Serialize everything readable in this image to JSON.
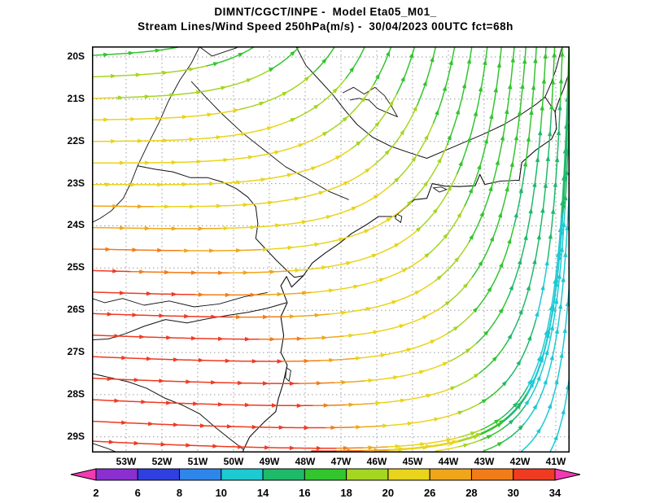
{
  "header": {
    "line1": "DIMNT/CGCT/INPE -  Model Eta05_M01_",
    "line2": "Stream Lines/Wind Speed 250hPa(m/s) -  30/04/2023 00UTC fct=68h"
  },
  "axes": {
    "lat_labels": [
      "20S",
      "21S",
      "22S",
      "23S",
      "24S",
      "25S",
      "26S",
      "27S",
      "28S",
      "29S"
    ],
    "lon_labels": [
      "53W",
      "52W",
      "51W",
      "50W",
      "49W",
      "48W",
      "47W",
      "46W",
      "45W",
      "44W",
      "43W",
      "42W",
      "41W"
    ]
  },
  "colorbar": {
    "tick_labels": [
      "2",
      "6",
      "8",
      "10",
      "14",
      "16",
      "18",
      "20",
      "26",
      "28",
      "30",
      "34"
    ],
    "segment_colors": [
      "#8a2fd0",
      "#2f3fe0",
      "#2f86ea",
      "#1ec9d2",
      "#1fb96a",
      "#33c52e",
      "#a5d622",
      "#e9d41c",
      "#f0a61a",
      "#f27c17",
      "#ef3b22"
    ],
    "arrow_color": "#f43ab2"
  },
  "chart_data": {
    "type": "streamline-map",
    "institution": "DIMNT/CGCT/INPE",
    "model": "Eta05_M01_",
    "field": "Stream Lines/Wind Speed",
    "level": "250hPa",
    "units": "m/s",
    "valid_time": "30/04/2023 00UTC",
    "forecast": "fct=68h",
    "lat_range_s": [
      19.75,
      29.37
    ],
    "lon_range_w": [
      53.955,
      40.614
    ],
    "speed_scale": {
      "unit": "m/s",
      "ticks": [
        2,
        6,
        8,
        10,
        14,
        16,
        18,
        20,
        26,
        28,
        30,
        34
      ]
    },
    "flow_summary": "Westerly jet of 30-34 m/s across the south (27S-29S, red) weakening eastward and northward; flow turns sharply northward along the east edge where speeds fall to 8-14 m/s (cyan/blue); 16-20 m/s (green) across the north.",
    "flow_model": {
      "note": "parametric approximation of the wind field used only to redraw the streamlines",
      "speed": {
        "base": 17,
        "south_gain": 24,
        "east_decay": 32,
        "east_pow": 1.6,
        "max": 33.9
      },
      "direction": {
        "ax": 0.95,
        "bx0": 0.35,
        "bx1": 0.65,
        "x_floor": 0.03,
        "py_base": 2,
        "py_gain": 2.5,
        "ay0": 1.8,
        "ay1": 1.45,
        "dip": 0.08,
        "dip_center": 0.3
      }
    },
    "seeds": {
      "left_edge_v": [
        0.022,
        0.075,
        0.128,
        0.181,
        0.234,
        0.287,
        0.34,
        0.393,
        0.446,
        0.499,
        0.552,
        0.605,
        0.658,
        0.711,
        0.764,
        0.817,
        0.87,
        0.923,
        0.972
      ],
      "bottom_edge_u": [
        0.46,
        0.6,
        0.72,
        0.82,
        0.9,
        0.96
      ]
    },
    "map_outlines": {
      "coast": [
        [
          40.62,
          20.35
        ],
        [
          40.78,
          20.75
        ],
        [
          40.92,
          21.05
        ],
        [
          41.02,
          21.3
        ],
        [
          40.98,
          21.7
        ],
        [
          41.12,
          21.95
        ],
        [
          41.55,
          22.2
        ],
        [
          41.95,
          22.5
        ],
        [
          42.02,
          22.92
        ],
        [
          42.55,
          22.94
        ],
        [
          42.98,
          23.02
        ],
        [
          43.12,
          22.78
        ],
        [
          43.25,
          23.05
        ],
        [
          43.7,
          23.07
        ],
        [
          44.1,
          23.06
        ],
        [
          44.45,
          23.0
        ],
        [
          44.6,
          23.35
        ],
        [
          44.95,
          23.38
        ],
        [
          45.25,
          23.6
        ],
        [
          45.5,
          23.78
        ],
        [
          45.95,
          23.78
        ],
        [
          46.3,
          23.98
        ],
        [
          46.7,
          24.18
        ],
        [
          47.05,
          24.42
        ],
        [
          47.45,
          24.65
        ],
        [
          47.8,
          24.88
        ],
        [
          48.05,
          25.18
        ],
        [
          48.38,
          25.45
        ],
        [
          48.52,
          25.2
        ],
        [
          48.68,
          25.42
        ],
        [
          48.5,
          25.82
        ],
        [
          48.68,
          26.15
        ],
        [
          48.6,
          26.6
        ],
        [
          48.68,
          27.0
        ],
        [
          48.5,
          27.3
        ],
        [
          48.62,
          27.75
        ],
        [
          48.75,
          28.1
        ],
        [
          48.82,
          28.4
        ],
        [
          49.15,
          28.65
        ],
        [
          49.55,
          29.0
        ],
        [
          49.72,
          29.3
        ],
        [
          49.82,
          29.6
        ]
      ],
      "borders": [
        [
          [
            48.25,
            19.76
          ],
          [
            47.98,
            20.2
          ],
          [
            47.6,
            20.55
          ],
          [
            47.22,
            20.9
          ],
          [
            46.9,
            21.25
          ],
          [
            46.55,
            21.6
          ],
          [
            46.12,
            21.9
          ],
          [
            45.6,
            22.12
          ],
          [
            45.05,
            22.28
          ],
          [
            44.6,
            22.4
          ]
        ],
        [
          [
            44.6,
            22.4
          ],
          [
            44.1,
            22.22
          ],
          [
            43.55,
            22.02
          ],
          [
            43.0,
            21.82
          ],
          [
            42.45,
            21.6
          ],
          [
            41.95,
            21.35
          ],
          [
            41.55,
            21.12
          ],
          [
            41.3,
            20.95
          ],
          [
            41.02,
            21.3
          ]
        ],
        [
          [
            41.3,
            20.95
          ],
          [
            41.12,
            20.6
          ],
          [
            40.98,
            20.25
          ],
          [
            40.88,
            19.92
          ],
          [
            40.82,
            19.76
          ]
        ],
        [
          [
            52.68,
            22.58
          ],
          [
            52.2,
            22.66
          ],
          [
            51.7,
            22.72
          ],
          [
            51.2,
            22.86
          ],
          [
            50.72,
            22.86
          ],
          [
            50.32,
            22.96
          ],
          [
            49.92,
            23.12
          ],
          [
            49.6,
            23.32
          ],
          [
            49.38,
            23.55
          ],
          [
            49.32,
            23.95
          ],
          [
            49.38,
            24.3
          ],
          [
            49.1,
            24.55
          ],
          [
            48.8,
            24.82
          ],
          [
            48.52,
            25.05
          ],
          [
            48.3,
            25.22
          ],
          [
            48.05,
            25.18
          ]
        ],
        [
          [
            48.52,
            25.82
          ],
          [
            49.05,
            25.95
          ],
          [
            49.6,
            26.05
          ],
          [
            50.15,
            26.12
          ],
          [
            50.72,
            26.2
          ],
          [
            51.3,
            26.3
          ],
          [
            51.9,
            26.22
          ],
          [
            52.5,
            26.38
          ],
          [
            53.0,
            26.55
          ],
          [
            53.5,
            26.68
          ],
          [
            53.95,
            26.7
          ]
        ],
        [
          [
            49.72,
            29.3
          ],
          [
            50.1,
            29.05
          ],
          [
            50.5,
            28.78
          ],
          [
            50.95,
            28.45
          ],
          [
            51.42,
            28.25
          ],
          [
            51.92,
            28.08
          ],
          [
            52.42,
            27.85
          ],
          [
            52.92,
            27.7
          ],
          [
            53.42,
            27.6
          ],
          [
            53.95,
            27.5
          ]
        ]
      ],
      "rivers": [
        [
          [
            50.95,
            19.76
          ],
          [
            51.18,
            20.15
          ],
          [
            51.5,
            20.55
          ],
          [
            51.82,
            21.05
          ],
          [
            52.08,
            21.55
          ],
          [
            52.38,
            22.05
          ],
          [
            52.68,
            22.58
          ],
          [
            52.85,
            22.95
          ],
          [
            53.08,
            23.35
          ],
          [
            53.42,
            23.65
          ],
          [
            53.72,
            23.82
          ],
          [
            53.95,
            23.92
          ]
        ],
        [
          [
            46.78,
            23.38
          ],
          [
            47.35,
            23.18
          ],
          [
            47.95,
            22.88
          ],
          [
            48.55,
            22.6
          ],
          [
            49.15,
            22.2
          ],
          [
            49.75,
            21.8
          ],
          [
            50.32,
            21.35
          ],
          [
            50.78,
            20.95
          ],
          [
            51.18,
            20.58
          ]
        ],
        [
          [
            50.95,
            19.76
          ],
          [
            50.6,
            19.98
          ],
          [
            50.25,
            19.88
          ],
          [
            49.9,
            19.78
          ]
        ],
        [
          [
            49.05,
            25.58
          ],
          [
            49.7,
            25.68
          ],
          [
            50.4,
            25.85
          ],
          [
            51.1,
            25.92
          ],
          [
            51.8,
            25.78
          ],
          [
            52.5,
            25.88
          ],
          [
            53.1,
            25.72
          ],
          [
            53.6,
            25.82
          ],
          [
            53.95,
            25.72
          ]
        ],
        [
          [
            46.95,
            20.85
          ],
          [
            46.65,
            20.72
          ],
          [
            46.35,
            20.88
          ],
          [
            46.05,
            20.72
          ],
          [
            45.78,
            20.92
          ],
          [
            45.58,
            21.18
          ],
          [
            45.42,
            21.42
          ],
          [
            45.7,
            21.32
          ],
          [
            45.98,
            21.22
          ],
          [
            46.22,
            21.02
          ],
          [
            46.5,
            20.98
          ],
          [
            46.75,
            21.02
          ]
        ],
        [
          [
            53.95,
            29.15
          ],
          [
            53.5,
            29.28
          ],
          [
            53.1,
            29.42
          ],
          [
            52.82,
            29.6
          ]
        ]
      ],
      "islands": [
        [
          [
            44.42,
            23.1
          ],
          [
            44.2,
            23.08
          ],
          [
            44.05,
            23.14
          ],
          [
            44.25,
            23.2
          ],
          [
            44.42,
            23.1
          ]
        ],
        [
          [
            45.45,
            23.72
          ],
          [
            45.3,
            23.78
          ],
          [
            45.33,
            23.92
          ],
          [
            45.48,
            23.83
          ],
          [
            45.45,
            23.72
          ]
        ],
        [
          [
            48.52,
            27.36
          ],
          [
            48.4,
            27.43
          ],
          [
            48.45,
            27.68
          ],
          [
            48.55,
            27.6
          ],
          [
            48.52,
            27.36
          ]
        ]
      ]
    }
  }
}
